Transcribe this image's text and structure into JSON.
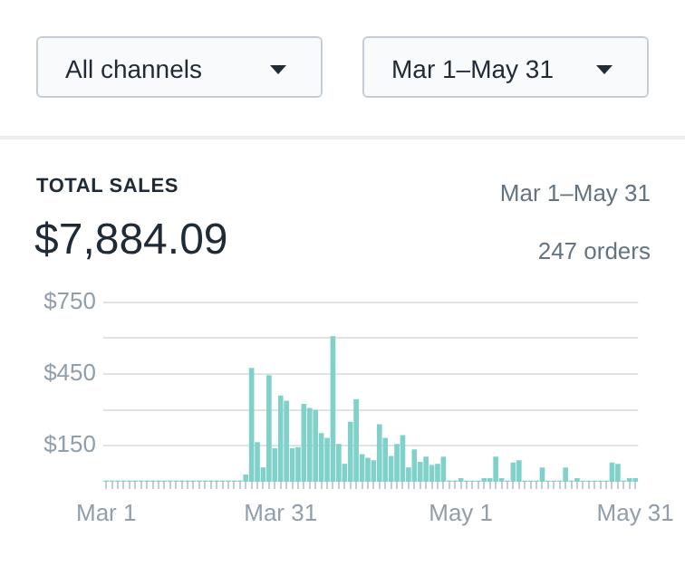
{
  "chart_data": {
    "type": "bar",
    "title": "TOTAL SALES",
    "subtitle": "$7,884.09",
    "annotations": [
      "All channels",
      "Mar 1–May 31",
      "Mar 1–May 31",
      "247 orders"
    ],
    "categories": [
      "Mar 1",
      null,
      null,
      null,
      null,
      null,
      null,
      null,
      null,
      null,
      null,
      null,
      null,
      null,
      null,
      null,
      null,
      null,
      null,
      null,
      null,
      null,
      null,
      null,
      null,
      null,
      null,
      null,
      null,
      null,
      "Mar 31",
      null,
      null,
      null,
      null,
      null,
      null,
      null,
      null,
      null,
      null,
      null,
      null,
      null,
      null,
      null,
      null,
      null,
      null,
      null,
      null,
      null,
      null,
      null,
      null,
      null,
      null,
      null,
      null,
      null,
      null,
      "May 1",
      null,
      null,
      null,
      null,
      null,
      null,
      null,
      null,
      null,
      null,
      null,
      null,
      null,
      null,
      null,
      null,
      null,
      null,
      null,
      null,
      null,
      null,
      null,
      null,
      null,
      null,
      null,
      null,
      null,
      "May 31"
    ],
    "values": [
      5,
      5,
      5,
      5,
      5,
      5,
      5,
      5,
      5,
      5,
      5,
      5,
      5,
      5,
      5,
      5,
      5,
      5,
      5,
      5,
      5,
      5,
      5,
      5,
      30,
      475,
      165,
      60,
      445,
      140,
      360,
      338,
      140,
      145,
      325,
      308,
      300,
      203,
      183,
      608,
      158,
      75,
      250,
      345,
      115,
      100,
      90,
      240,
      183,
      108,
      158,
      195,
      60,
      135,
      83,
      105,
      70,
      75,
      105,
      5,
      5,
      15,
      5,
      5,
      5,
      15,
      15,
      105,
      15,
      5,
      80,
      90,
      5,
      5,
      5,
      60,
      5,
      5,
      5,
      60,
      5,
      15,
      5,
      5,
      5,
      5,
      5,
      80,
      75,
      5,
      15,
      15
    ],
    "color": "#7fd1ca",
    "ylim": [
      0,
      750
    ],
    "yticks": [
      {
        "value": 150,
        "label": "$150"
      },
      {
        "value": 300,
        "label": null
      },
      {
        "value": 450,
        "label": "$450"
      },
      {
        "value": 600,
        "label": null
      },
      {
        "value": 750,
        "label": "$750"
      }
    ],
    "grid": "y"
  }
}
